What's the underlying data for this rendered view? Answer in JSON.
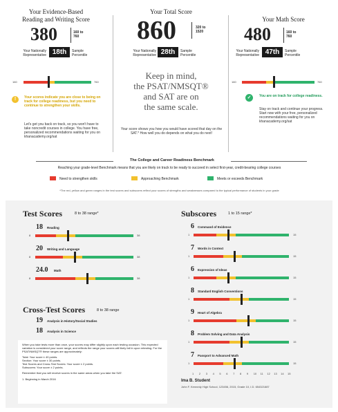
{
  "left": {
    "title1": "Your Evidence-Based",
    "title2": "Reading and Writing Score",
    "score": "380",
    "range1": "160 to",
    "range2": "760",
    "nat1": "Your Nationally",
    "nat2": "Representative",
    "percentile": "18th",
    "sample1": "Sample",
    "sample2": "Percentile",
    "scale_min": "160",
    "scale_max": "760",
    "warning": "Your scores indicate you are close to being on track for college readiness, but you need to continue to strengthen your skills.",
    "body": "Let's get you back on track, so you won't have to take noncredit courses in college. You have free, personalized recommendations waiting for you on khanacademy.org/sat"
  },
  "center": {
    "title": "Your Total Score",
    "score": "860",
    "range1": "320 to",
    "range2": "1520",
    "nat1": "Your Nationally",
    "nat2": "Representative",
    "percentile": "28th",
    "sample1": "Sample",
    "sample2": "Percentile",
    "keep1": "Keep in mind,",
    "keep2": "the PSAT/NMSQT®",
    "keep3": "and SAT are on",
    "keep4": "the same scale.",
    "note": "Your score shows you how you would have scored that day on the SAT.* How well you do depends on what you do next!"
  },
  "right": {
    "title": "Your Math Score",
    "score": "480",
    "range1": "160 to",
    "range2": "760",
    "nat1": "Your Nationally",
    "nat2": "Representative",
    "percentile": "47th",
    "sample1": "Sample",
    "sample2": "Percentile",
    "scale_min": "160",
    "scale_max": "760",
    "success": "You are on track for college readiness.",
    "body": "Stay on track and continue your progress. Start now with your free, personalized recommendations waiting for you on khanacademy.org/sat"
  },
  "benchmark": {
    "title": "The College and Career Readiness Benchmark",
    "desc": "Reaching your grade-level Benchmark means that you are likely on track to be ready to succeed in select first-year, credit-bearing college courses",
    "legend": [
      "Need to strengthen skills",
      "Approaching Benchmark",
      "Meets or exceeds Benchmark"
    ],
    "footnote": "*The red, yellow and green ranges in the test scores and subscores reflect your scores of strengths and weaknesses compared to the typical performance of students in your grade"
  },
  "test_scores": {
    "title": "Test Scores",
    "range": "8 to 38 range*",
    "min": "8",
    "max": "38",
    "items": [
      {
        "score": "18",
        "label": "Reading",
        "fraction": 0.33
      },
      {
        "score": "20",
        "label": "Writing and Language",
        "fraction": 0.4
      },
      {
        "score": "24.0",
        "label": "Math",
        "fraction": 0.53
      }
    ]
  },
  "cross_test": {
    "title": "Cross-Test Scores",
    "range": "8 to 38 range",
    "items": [
      {
        "score": "19",
        "label": "Analysis in History/Social Studies"
      },
      {
        "score": "18",
        "label": "Analysis in Science"
      }
    ]
  },
  "subscores": {
    "title": "Subscores",
    "range": "1 to 15 range*",
    "min": "1",
    "max": "15",
    "items": [
      {
        "score": "6",
        "label": "Command of Evidence",
        "fraction": 0.36
      },
      {
        "score": "7",
        "label": "Words in Context",
        "fraction": 0.43
      },
      {
        "score": "6",
        "label": "Expression of Ideas",
        "fraction": 0.36
      },
      {
        "score": "8",
        "label": "Standard English Conventions",
        "fraction": 0.5
      },
      {
        "score": "9",
        "label": "Heart of Algebra",
        "fraction": 0.57
      },
      {
        "score": "8",
        "label": "Problem Solving and Data Analysis",
        "fraction": 0.5
      },
      {
        "score": "7",
        "label": "Passport to Advanced Math",
        "fraction": 0.43
      }
    ],
    "axis": [
      "1",
      "2",
      "3",
      "4",
      "5",
      "6",
      "7",
      "8",
      "9",
      "10",
      "11",
      "12",
      "13",
      "14",
      "15"
    ]
  },
  "notes": {
    "p1": "When you take tests more than once, your scores may differ slightly upon each testing occasion. This expected variation is considered your score range, and reflects the range your scores will likely fall in upon retesting. For the PSAT/NMSQT® these ranges are approximately:",
    "l1": "Total: Your score ± 40 points.",
    "l2": "Section: Your score ± 30 points.",
    "l3": "Test Scores and Cross-Test Scores: Your score ± 2 points.",
    "l4": "Subscores: Your score ± 2 points.",
    "p2": "Remember that you will receive scores in the same areas when you take the SAT:",
    "p3": "1. Beginning in March 2016"
  },
  "student": {
    "name": "Ima B. Student",
    "school": "John F. Kennedy High School, 123456, 2015, Grade 10, I.D. 654321687"
  },
  "colors": {
    "red": "#e63b2e",
    "yellow": "#f2c12e",
    "green": "#2fb36c",
    "ink": "#1a1a1a"
  }
}
